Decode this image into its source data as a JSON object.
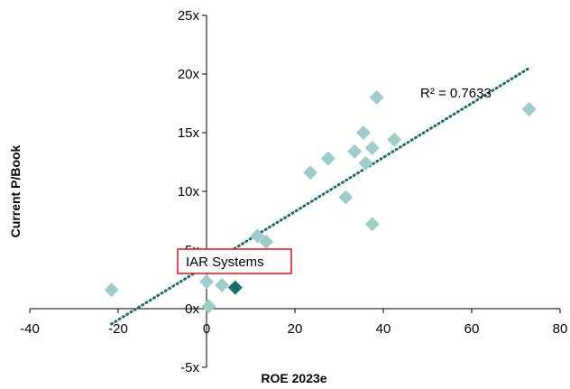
{
  "chart_data": {
    "type": "scatter",
    "title": "",
    "xlabel": "ROE 2023e",
    "ylabel": "Current P/Book",
    "xlim": [
      -40,
      80
    ],
    "ylim": [
      -5,
      25
    ],
    "x_ticks": [
      -40,
      -20,
      0,
      20,
      40,
      60,
      80
    ],
    "y_ticks": [
      -5,
      0,
      5,
      10,
      15,
      20,
      25
    ],
    "x_tick_labels": [
      "-40",
      "-20",
      "0",
      "20",
      "40",
      "60",
      "80"
    ],
    "y_tick_labels": [
      "-5x",
      "0x",
      "5x",
      "10x",
      "15x",
      "20x",
      "25x"
    ],
    "grid": false,
    "series": [
      {
        "points": [
          {
            "x": -21.5,
            "y": 1.6
          },
          {
            "x": 0,
            "y": 2.3
          },
          {
            "x": 0.5,
            "y": 0.2
          },
          {
            "x": 3.5,
            "y": 2.0
          },
          {
            "x": 11.5,
            "y": 6.2
          },
          {
            "x": 13.5,
            "y": 5.7
          },
          {
            "x": 23.5,
            "y": 11.6
          },
          {
            "x": 27.5,
            "y": 12.8
          },
          {
            "x": 31.5,
            "y": 9.5
          },
          {
            "x": 33.5,
            "y": 13.4
          },
          {
            "x": 35.5,
            "y": 15.0
          },
          {
            "x": 36.0,
            "y": 12.4
          },
          {
            "x": 37.5,
            "y": 13.7
          },
          {
            "x": 37.5,
            "y": 7.2
          },
          {
            "x": 38.5,
            "y": 18.0
          },
          {
            "x": 42.5,
            "y": 14.4
          },
          {
            "x": 73.0,
            "y": 17.0
          }
        ],
        "color": "#9fcdca"
      }
    ],
    "highlight": {
      "label": "IAR Systems",
      "x": 6.5,
      "y": 1.8,
      "color": "#1a6e6a",
      "box_color": "#e3101b"
    },
    "trendline": {
      "r_squared_label": "R² = 0.7633",
      "x_start": -21.5,
      "x_end": 73,
      "y_start": -1.3,
      "y_end": 20.5,
      "color": "#1a6e6a",
      "style": "dotted"
    }
  }
}
